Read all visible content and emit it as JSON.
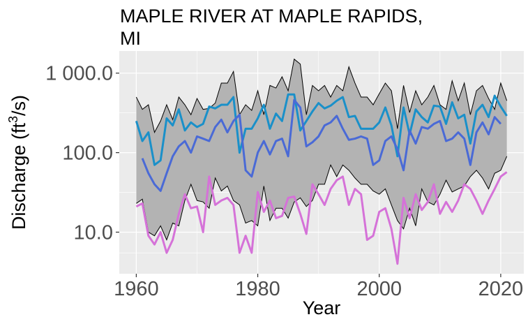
{
  "chart_data": {
    "type": "line",
    "title_lines": [
      "MAPLE RIVER AT MAPLE RAPIDS,",
      "MI"
    ],
    "xlabel": "Year",
    "ylabel": {
      "main": "Discharge (ft",
      "sup": "3",
      "tail": "/s)"
    },
    "y_scale": "log10",
    "xlim": [
      1957.2,
      2023.8
    ],
    "ylim": [
      3.0,
      1900
    ],
    "x_ticks": [
      1960,
      1980,
      2000,
      2020
    ],
    "x_tick_labels": [
      "1960",
      "1980",
      "2000",
      "2020"
    ],
    "y_ticks": [
      10,
      100,
      1000
    ],
    "y_tick_labels": [
      "10.0",
      "100.0",
      "1 000.0"
    ],
    "grid": true,
    "background": "#ebebeb",
    "band": {
      "fill": "#b3b3b3",
      "stroke": "#000000",
      "x": [
        1960,
        1961,
        1962,
        1963,
        1964,
        1965,
        1966,
        1967,
        1968,
        1969,
        1970,
        1971,
        1972,
        1973,
        1974,
        1975,
        1976,
        1977,
        1978,
        1979,
        1980,
        1981,
        1982,
        1983,
        1984,
        1985,
        1986,
        1987,
        1988,
        1989,
        1990,
        1991,
        1992,
        1993,
        1994,
        1995,
        1996,
        1997,
        1998,
        1999,
        2000,
        2001,
        2002,
        2003,
        2004,
        2005,
        2006,
        2007,
        2008,
        2009,
        2010,
        2011,
        2012,
        2013,
        2014,
        2015,
        2016,
        2017,
        2018,
        2019,
        2020,
        2021
      ],
      "upper": [
        500,
        350,
        400,
        180,
        250,
        400,
        260,
        500,
        400,
        300,
        480,
        350,
        360,
        420,
        750,
        750,
        1050,
        300,
        400,
        340,
        600,
        300,
        700,
        650,
        900,
        600,
        1500,
        1300,
        300,
        700,
        600,
        700,
        500,
        700,
        600,
        1200,
        750,
        500,
        500,
        400,
        550,
        750,
        600,
        200,
        700,
        320,
        600,
        400,
        500,
        700,
        400,
        350,
        800,
        450,
        750,
        300,
        600,
        700,
        480,
        350,
        750,
        450
      ],
      "lower": [
        23,
        26,
        10,
        9,
        12,
        8,
        13,
        12,
        25,
        40,
        25,
        24,
        20,
        48,
        33,
        38,
        25,
        22,
        13,
        14,
        12,
        38,
        14,
        20,
        20,
        15,
        24,
        27,
        21,
        25,
        40,
        40,
        70,
        50,
        70,
        60,
        48,
        40,
        40,
        33,
        30,
        35,
        22,
        14,
        11,
        20,
        12,
        35,
        24,
        22,
        30,
        45,
        32,
        35,
        38,
        50,
        60,
        48,
        35,
        55,
        60,
        90
      ]
    },
    "series": [
      {
        "color": "#1a90c9",
        "x": [
          1960,
          1961,
          1962,
          1963,
          1964,
          1965,
          1966,
          1967,
          1968,
          1969,
          1970,
          1971,
          1972,
          1973,
          1974,
          1975,
          1976,
          1977,
          1978,
          1979,
          1980,
          1981,
          1982,
          1983,
          1984,
          1985,
          1986,
          1987,
          1988,
          1989,
          1990,
          1991,
          1992,
          1993,
          1994,
          1995,
          1996,
          1997,
          1998,
          1999,
          2000,
          2001,
          2002,
          2003,
          2004,
          2005,
          2006,
          2007,
          2008,
          2009,
          2010,
          2011,
          2012,
          2013,
          2014,
          2015,
          2016,
          2017,
          2018,
          2019,
          2020,
          2021
        ],
        "values": [
          250,
          140,
          180,
          70,
          80,
          270,
          220,
          350,
          190,
          240,
          210,
          230,
          380,
          360,
          400,
          400,
          500,
          100,
          200,
          200,
          270,
          400,
          200,
          310,
          250,
          540,
          540,
          190,
          250,
          330,
          420,
          360,
          390,
          450,
          500,
          280,
          290,
          200,
          200,
          200,
          240,
          370,
          220,
          90,
          370,
          170,
          350,
          280,
          240,
          390,
          380,
          230,
          430,
          270,
          300,
          130,
          330,
          400,
          280,
          520,
          380,
          290
        ]
      },
      {
        "color": "#4a6ad6",
        "x": [
          1961,
          1962,
          1963,
          1964,
          1965,
          1966,
          1967,
          1968,
          1969,
          1970,
          1971,
          1972,
          1973,
          1974,
          1975,
          1976,
          1977,
          1978,
          1979,
          1980,
          1981,
          1982,
          1983,
          1984,
          1985,
          1986,
          1987,
          1988,
          1989,
          1990,
          1991,
          1992,
          1993,
          1994,
          1995,
          1996,
          1997,
          1998,
          1999,
          2000,
          2001,
          2002,
          2003,
          2004,
          2005,
          2006,
          2007,
          2008,
          2009,
          2010,
          2011,
          2012,
          2013,
          2014,
          2015,
          2016,
          2017,
          2018,
          2019,
          2020
        ],
        "values": [
          85,
          55,
          40,
          33,
          55,
          90,
          120,
          140,
          100,
          160,
          150,
          140,
          210,
          260,
          180,
          250,
          300,
          60,
          50,
          100,
          140,
          95,
          140,
          150,
          90,
          460,
          370,
          120,
          135,
          160,
          220,
          240,
          290,
          200,
          145,
          150,
          160,
          150,
          70,
          80,
          140,
          160,
          110,
          60,
          190,
          130,
          210,
          200,
          230,
          250,
          140,
          150,
          180,
          150,
          70,
          180,
          240,
          170,
          280,
          230
        ]
      },
      {
        "color": "#d572d8",
        "x": [
          1960,
          1961,
          1962,
          1963,
          1964,
          1965,
          1966,
          1967,
          1968,
          1969,
          1970,
          1971,
          1972,
          1973,
          1974,
          1975,
          1976,
          1977,
          1978,
          1979,
          1980,
          1981,
          1982,
          1983,
          1984,
          1985,
          1986,
          1987,
          1988,
          1989,
          1990,
          1991,
          1992,
          1993,
          1994,
          1995,
          1996,
          1997,
          1998,
          1999,
          2000,
          2001,
          2002,
          2003,
          2004,
          2005,
          2006,
          2007,
          2008,
          2009,
          2010,
          2011,
          2012,
          2013,
          2014,
          2015,
          2016,
          2017,
          2018,
          2019,
          2020,
          2021
        ],
        "values": [
          21,
          23,
          9,
          7,
          10,
          5.5,
          8,
          17,
          30,
          20,
          21,
          10,
          50,
          22,
          25,
          27,
          22,
          5.5,
          9,
          5.5,
          32,
          18,
          25,
          15,
          16,
          27,
          28,
          17,
          9.5,
          40,
          30,
          22,
          35,
          45,
          50,
          22,
          35,
          30,
          8,
          9,
          18,
          20,
          11,
          4,
          27,
          15,
          30,
          19,
          24,
          40,
          17,
          24,
          18,
          25,
          40,
          35,
          25,
          17,
          25,
          35,
          50,
          57
        ]
      }
    ]
  }
}
